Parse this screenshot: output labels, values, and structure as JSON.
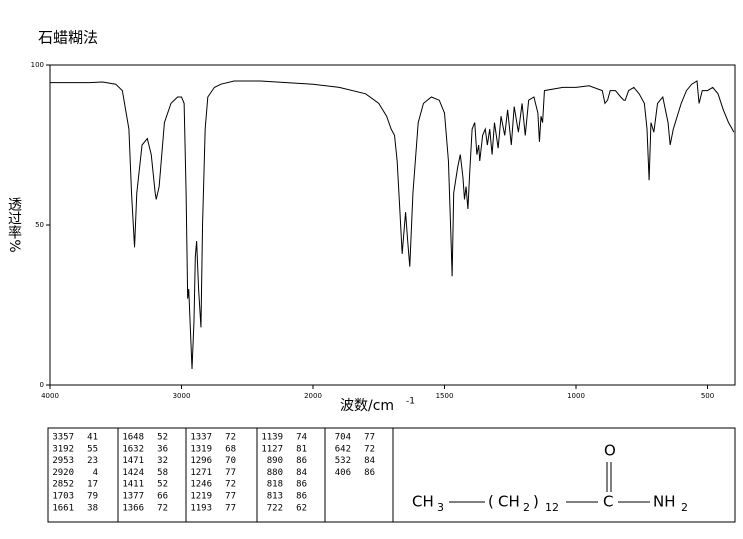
{
  "chart_data": {
    "type": "line",
    "title": "石蜡糊法",
    "xlabel": "波数/cm",
    "xlabel_sup": "-1",
    "ylabel": "透过率%",
    "x": [
      4000,
      3700,
      3600,
      3500,
      3450,
      3400,
      3380,
      3357,
      3340,
      3300,
      3260,
      3230,
      3200,
      3192,
      3170,
      3130,
      3080,
      3030,
      3000,
      2980,
      2965,
      2953,
      2945,
      2935,
      2920,
      2905,
      2895,
      2885,
      2870,
      2852,
      2840,
      2820,
      2800,
      2750,
      2700,
      2600,
      2400,
      2200,
      2000,
      1900,
      1800,
      1750,
      1720,
      1703,
      1690,
      1680,
      1670,
      1661,
      1652,
      1648,
      1640,
      1632,
      1620,
      1600,
      1580,
      1550,
      1520,
      1500,
      1485,
      1475,
      1471,
      1465,
      1450,
      1440,
      1430,
      1424,
      1418,
      1411,
      1405,
      1395,
      1385,
      1377,
      1370,
      1366,
      1355,
      1345,
      1337,
      1328,
      1319,
      1310,
      1296,
      1285,
      1271,
      1260,
      1246,
      1235,
      1219,
      1205,
      1193,
      1180,
      1160,
      1145,
      1139,
      1133,
      1127,
      1120,
      1050,
      1000,
      950,
      900,
      890,
      880,
      870,
      850,
      830,
      818,
      813,
      800,
      780,
      760,
      740,
      730,
      722,
      715,
      704,
      690,
      670,
      650,
      642,
      630,
      600,
      580,
      560,
      540,
      532,
      520,
      500,
      480,
      460,
      440,
      420,
      406,
      400
    ],
    "series": [
      {
        "color": "#000000",
        "values": [
          94.5,
          94.5,
          94.7,
          94,
          92,
          80,
          60,
          43,
          60,
          75,
          77,
          72,
          60,
          58,
          62,
          82,
          88,
          90,
          90,
          88,
          60,
          27,
          30,
          20,
          5,
          20,
          40,
          45,
          30,
          18,
          50,
          80,
          90,
          93,
          94,
          95,
          95,
          94.5,
          94,
          93,
          91,
          88,
          84,
          80,
          78,
          70,
          55,
          41,
          50,
          54,
          45,
          37,
          60,
          82,
          88,
          90,
          89,
          85,
          70,
          45,
          34,
          60,
          68,
          72,
          65,
          58,
          62,
          55,
          65,
          80,
          82,
          72,
          75,
          70,
          78,
          80,
          75,
          80,
          72,
          82,
          74,
          84,
          78,
          86,
          75,
          87,
          79,
          88,
          78,
          89,
          90,
          85,
          76,
          84,
          82,
          92,
          93,
          93,
          93.5,
          92,
          88,
          89,
          92,
          92,
          90,
          89,
          89,
          92,
          93,
          91,
          88,
          80,
          64,
          82,
          79,
          88,
          90,
          82,
          75,
          80,
          88,
          92,
          94,
          95,
          88,
          92,
          92,
          93,
          91,
          86,
          82,
          80,
          79
        ]
      }
    ],
    "xlim": [
      4000,
      400
    ],
    "xticks": [
      4000,
      3000,
      2000,
      1500,
      1000,
      500
    ],
    "ylim": [
      0,
      100
    ],
    "yticks": [
      0,
      50,
      100
    ]
  },
  "peak_table": {
    "columns": [
      [
        [
          3357,
          41
        ],
        [
          3192,
          55
        ],
        [
          2953,
          23
        ],
        [
          2920,
          4
        ],
        [
          2852,
          17
        ],
        [
          1703,
          79
        ],
        [
          1661,
          38
        ]
      ],
      [
        [
          1648,
          52
        ],
        [
          1632,
          36
        ],
        [
          1471,
          32
        ],
        [
          1424,
          58
        ],
        [
          1411,
          52
        ],
        [
          1377,
          66
        ],
        [
          1366,
          72
        ]
      ],
      [
        [
          1337,
          72
        ],
        [
          1319,
          68
        ],
        [
          1296,
          70
        ],
        [
          1271,
          77
        ],
        [
          1246,
          72
        ],
        [
          1219,
          77
        ],
        [
          1193,
          77
        ]
      ],
      [
        [
          1139,
          74
        ],
        [
          1127,
          81
        ],
        [
          890,
          86
        ],
        [
          880,
          84
        ],
        [
          818,
          86
        ],
        [
          813,
          86
        ],
        [
          722,
          62
        ]
      ],
      [
        [
          704,
          77
        ],
        [
          642,
          72
        ],
        [
          532,
          84
        ],
        [
          406,
          86
        ]
      ]
    ]
  },
  "structure": {
    "parts": [
      "CH",
      "3",
      "(",
      "CH",
      "2",
      ")",
      "12",
      "C",
      "O",
      "NH",
      "2"
    ]
  }
}
